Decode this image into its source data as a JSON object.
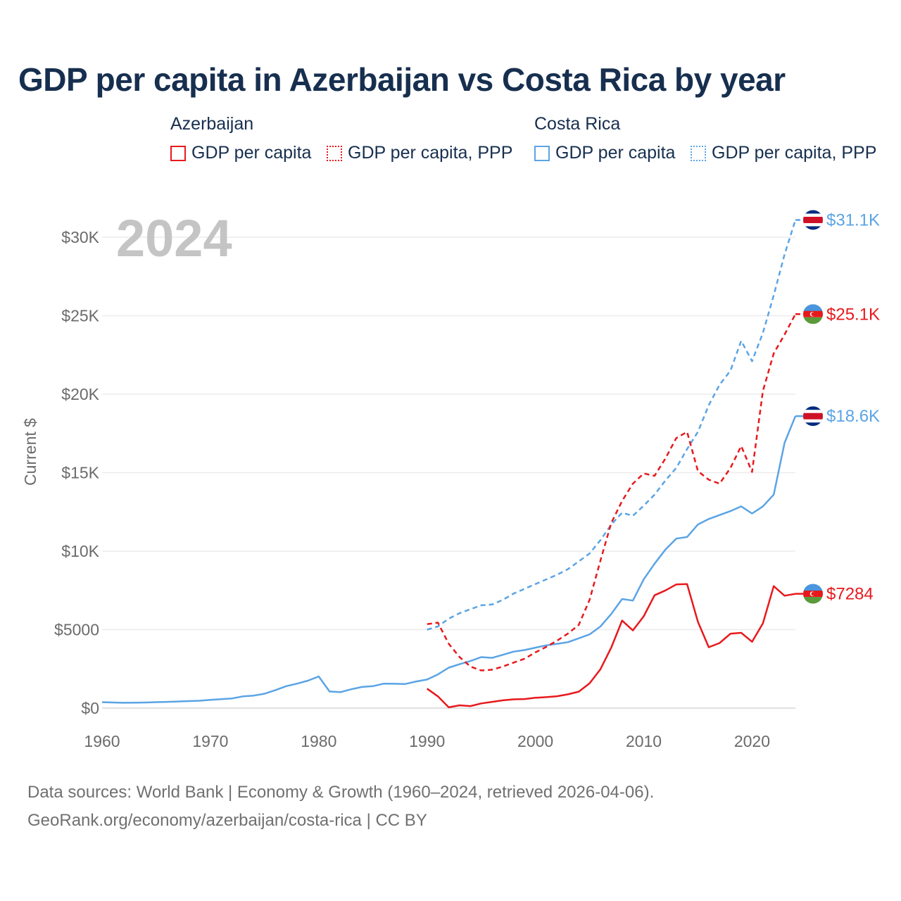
{
  "title": "GDP per capita in Azerbaijan vs Costa Rica by year",
  "year_watermark": "2024",
  "legend": {
    "groups": [
      {
        "country": "Azerbaijan",
        "color": "#e8191c",
        "items": [
          {
            "label": "GDP per capita",
            "style": "solid"
          },
          {
            "label": "GDP per capita, PPP",
            "style": "dotted"
          }
        ]
      },
      {
        "country": "Costa Rica",
        "color": "#5ba4e5",
        "items": [
          {
            "label": "GDP per capita",
            "style": "solid"
          },
          {
            "label": "GDP per capita, PPP",
            "style": "dotted"
          }
        ]
      }
    ]
  },
  "footer": {
    "line1": "Data sources: World Bank | Economy & Growth (1960–2024, retrieved 2026-04-06).",
    "line2": "GeoRank.org/economy/azerbaijan/costa-rica | CC BY"
  },
  "chart_data": {
    "type": "line",
    "title": "GDP per capita in Azerbaijan vs Costa Rica by year",
    "xlabel": "",
    "ylabel": "Current $",
    "xlim": [
      1960,
      2024
    ],
    "ylim": [
      0,
      31500
    ],
    "x_ticks": [
      1960,
      1970,
      1980,
      1990,
      2000,
      2010,
      2020
    ],
    "x_tick_labels": [
      "1960",
      "1970",
      "1980",
      "1990",
      "2000",
      "2010",
      "2020"
    ],
    "y_ticks": [
      0,
      5000,
      10000,
      15000,
      20000,
      25000,
      30000
    ],
    "y_tick_labels": [
      "$0",
      "$5000",
      "$10K",
      "$15K",
      "$20K",
      "$25K",
      "$30K"
    ],
    "grid": true,
    "series": [
      {
        "name": "Costa Rica GDP per capita",
        "country": "Costa Rica",
        "color": "#5ba4e5",
        "dash": "solid",
        "end_label": "$18.6K",
        "flag": "costa-rica",
        "x": [
          1960,
          1961,
          1962,
          1963,
          1964,
          1965,
          1966,
          1967,
          1968,
          1969,
          1970,
          1971,
          1972,
          1973,
          1974,
          1975,
          1976,
          1977,
          1978,
          1979,
          1980,
          1981,
          1982,
          1983,
          1984,
          1985,
          1986,
          1987,
          1988,
          1989,
          1990,
          1991,
          1992,
          1993,
          1994,
          1995,
          1996,
          1997,
          1998,
          1999,
          2000,
          2001,
          2002,
          2003,
          2004,
          2005,
          2006,
          2007,
          2008,
          2009,
          2010,
          2011,
          2012,
          2013,
          2014,
          2015,
          2016,
          2017,
          2018,
          2019,
          2020,
          2021,
          2022,
          2023,
          2024
        ],
        "values": [
          380,
          360,
          340,
          350,
          360,
          380,
          400,
          420,
          450,
          470,
          530,
          570,
          620,
          750,
          800,
          920,
          1150,
          1400,
          1560,
          1750,
          2020,
          1060,
          1020,
          1200,
          1350,
          1400,
          1560,
          1550,
          1540,
          1700,
          1820,
          2150,
          2580,
          2800,
          3000,
          3250,
          3200,
          3400,
          3600,
          3700,
          3850,
          4000,
          4100,
          4200,
          4450,
          4700,
          5200,
          6000,
          6950,
          6850,
          8200,
          9200,
          10100,
          10800,
          10900,
          11700,
          12050,
          12300,
          12550,
          12850,
          12400,
          12850,
          13600,
          16900,
          18600
        ]
      },
      {
        "name": "Costa Rica GDP per capita, PPP",
        "country": "Costa Rica",
        "color": "#5ba4e5",
        "dash": "dashed",
        "end_label": "$31.1K",
        "flag": "costa-rica",
        "x": [
          1990,
          1991,
          1992,
          1993,
          1994,
          1995,
          1996,
          1997,
          1998,
          1999,
          2000,
          2001,
          2002,
          2003,
          2004,
          2005,
          2006,
          2007,
          2008,
          2009,
          2010,
          2011,
          2012,
          2013,
          2014,
          2015,
          2016,
          2017,
          2018,
          2019,
          2020,
          2021,
          2022,
          2023,
          2024
        ],
        "values": [
          5000,
          5200,
          5700,
          6050,
          6300,
          6550,
          6600,
          6900,
          7300,
          7600,
          7900,
          8200,
          8500,
          8850,
          9350,
          9850,
          10700,
          11700,
          12450,
          12250,
          12900,
          13600,
          14500,
          15300,
          16500,
          17600,
          19300,
          20600,
          21500,
          23400,
          22100,
          23900,
          26300,
          28900,
          31100
        ]
      },
      {
        "name": "Azerbaijan GDP per capita",
        "country": "Azerbaijan",
        "color": "#e8191c",
        "dash": "solid",
        "end_label": "$7284",
        "flag": "azerbaijan",
        "x": [
          1990,
          1991,
          1992,
          1993,
          1994,
          1995,
          1996,
          1997,
          1998,
          1999,
          2000,
          2001,
          2002,
          2003,
          2004,
          2005,
          2006,
          2007,
          2008,
          2009,
          2010,
          2011,
          2012,
          2013,
          2014,
          2015,
          2016,
          2017,
          2018,
          2019,
          2020,
          2021,
          2022,
          2023,
          2024
        ],
        "values": [
          1240,
          750,
          50,
          180,
          130,
          300,
          400,
          500,
          560,
          580,
          660,
          700,
          760,
          880,
          1050,
          1580,
          2480,
          3860,
          5580,
          4950,
          5850,
          7190,
          7500,
          7880,
          7900,
          5500,
          3880,
          4150,
          4740,
          4800,
          4230,
          5400,
          7770,
          7160,
          7284
        ]
      },
      {
        "name": "Azerbaijan GDP per capita, PPP",
        "country": "Azerbaijan",
        "color": "#e8191c",
        "dash": "dashed",
        "end_label": "$25.1K",
        "flag": "azerbaijan",
        "x": [
          1990,
          1991,
          1992,
          1993,
          1994,
          1995,
          1996,
          1997,
          1998,
          1999,
          2000,
          2001,
          2002,
          2003,
          2004,
          2005,
          2006,
          2007,
          2008,
          2009,
          2010,
          2011,
          2012,
          2013,
          2014,
          2015,
          2016,
          2017,
          2018,
          2019,
          2020,
          2021,
          2022,
          2023,
          2024
        ],
        "values": [
          5350,
          5450,
          4100,
          3250,
          2650,
          2400,
          2450,
          2650,
          2900,
          3150,
          3550,
          3900,
          4300,
          4750,
          5300,
          6900,
          9400,
          11800,
          13200,
          14300,
          14950,
          14800,
          15900,
          17200,
          17600,
          15100,
          14550,
          14300,
          15300,
          16700,
          15050,
          20200,
          22600,
          23800,
          25100
        ]
      }
    ]
  }
}
